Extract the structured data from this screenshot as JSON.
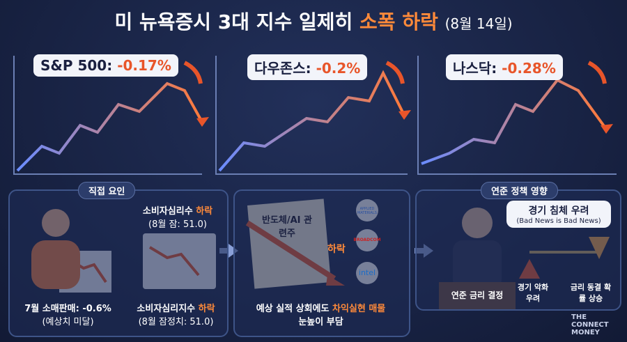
{
  "header": {
    "title": "미 뉴욕증시 3대 지수 일제히",
    "highlight": "소폭 하락",
    "date": "(8월 14일)"
  },
  "indices": [
    {
      "name": "S&P 500:",
      "change": "-0.17%"
    },
    {
      "name": "다우존스:",
      "change": "-0.2%"
    },
    {
      "name": "나스닥:",
      "change": "-0.28%"
    }
  ],
  "direct_factors": {
    "title": "직접 요인",
    "top_label": {
      "text": "소비자심리수",
      "highlight": "하락",
      "sub": "(8월 잠: 51.0)"
    },
    "retail": {
      "text": "7월 소매판매: -0.6%",
      "sub": "(예상치 미달)"
    },
    "sentiment": {
      "text": "소비자심리지수",
      "highlight": "하락",
      "sub": "(8월 잠정치: 51.0)"
    }
  },
  "semis": {
    "doc": "반도체/AI 관련주",
    "arrow": "하락",
    "logos": [
      "APPLIED MATERIALS",
      "BROADCOM",
      "intel"
    ],
    "caption_a": "예상 실적 상회에도",
    "caption_b": "차익실현 매물",
    "caption_c": "눈높이 부담"
  },
  "fed": {
    "title": "연준 정책 영향",
    "bubble": "경기 침체 우려",
    "bubble_sub": "(Bad News is Bad News)",
    "podium": "연준 금리 결정",
    "left": "경기 악화 우려",
    "right": "금리 동결 확률 상승"
  },
  "brand": "THE CONNECT MONEY"
}
